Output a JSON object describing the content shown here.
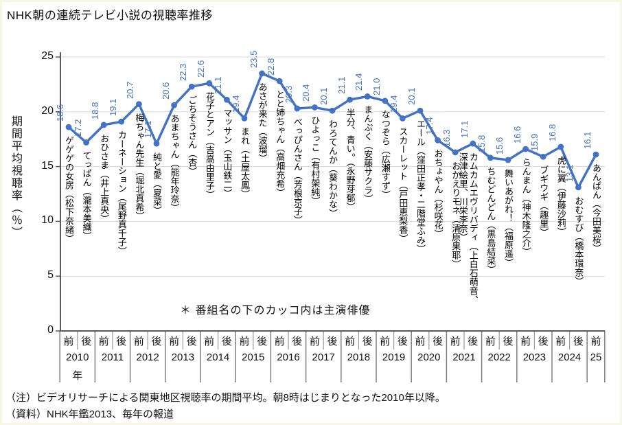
{
  "title": "NHK朝の連続テレビ小説の視聴率推移",
  "annotation": "＊ 番組名の下のカッコ内は主演俳優",
  "notes": [
    "（注）ビデオリサーチによる関東地区視聴率の期間平均。朝8時はじまりとなった2010年以降。",
    "（資料）NHK年鑑2013、毎年の報道"
  ],
  "chart_data": {
    "type": "line",
    "title": "NHK朝の連続テレビ小説の視聴率推移",
    "ylabel": "期間平均視聴率（％）",
    "ylim": [
      0,
      25
    ],
    "yticks": [
      0,
      5,
      10,
      15,
      20,
      25
    ],
    "grid": true,
    "legend": "none",
    "line_color": "#4472c4",
    "grid_color": "#d9d9d9",
    "axis_color": "#595959",
    "table_line_color": "#7f7f7f",
    "x_axis": {
      "half_labels": [
        "前",
        "後"
      ],
      "years_row": [
        "2010",
        "2011",
        "2012",
        "2013",
        "2014",
        "2015",
        "2016",
        "2017",
        "2018",
        "2019",
        "2020",
        "2021",
        "2022",
        "2023",
        "2024",
        "25"
      ],
      "year_suffix_2010": "年"
    },
    "points": [
      {
        "period": "2010前",
        "value": 18.6,
        "value_label": "18.6",
        "show": "ゲゲゲの女房（松下奈緒）"
      },
      {
        "period": "2010後",
        "value": 17.2,
        "value_label": "17.2",
        "show": "てっぱん（瀧本美織）"
      },
      {
        "period": "2011前",
        "value": 18.8,
        "value_label": "18.8",
        "show": "おひさま（井上真央）"
      },
      {
        "period": "2011後",
        "value": 19.1,
        "value_label": "19.1",
        "show": "カーネーション（尾野真千子）"
      },
      {
        "period": "2012前",
        "value": 20.7,
        "value_label": "20.7",
        "show": "梅ちゃん先生（堀北真希）"
      },
      {
        "period": "2012後",
        "value": 17.1,
        "value_label": "17.1",
        "show": "純と愛（夏菜）"
      },
      {
        "period": "2013前",
        "value": 20.6,
        "value_label": "20.6",
        "show": "あまちゃん（能年玲奈）"
      },
      {
        "period": "2013後",
        "value": 22.3,
        "value_label": "22.3",
        "show": "ごちそうさん（杏）"
      },
      {
        "period": "2014前",
        "value": 22.6,
        "value_label": "22.6",
        "show": "花子とアン（吉高由里子）"
      },
      {
        "period": "2014後",
        "value": 21.1,
        "value_label": "21.1",
        "show": "マッサン（玉山鉄二）"
      },
      {
        "period": "2015前",
        "value": 19.4,
        "value_label": "19.4",
        "show": "まれ（土屋太鳳）"
      },
      {
        "period": "2015後",
        "value": 23.5,
        "value_label": "23.5",
        "show": "あさが来た（波瑠）"
      },
      {
        "period": "2016前",
        "value": 22.8,
        "value_label": "22.8",
        "show": "とと姉ちゃん（高畑充希）"
      },
      {
        "period": "2016後",
        "value": 20.3,
        "value_label": "20.3",
        "show": "べっぴんさん（芳根京子）"
      },
      {
        "period": "2017前",
        "value": 20.4,
        "value_label": "20.4",
        "show": "ひよっこ（有村架純）"
      },
      {
        "period": "2017後",
        "value": 20.1,
        "value_label": "20.1",
        "show": "わろてんか（葵わかな）"
      },
      {
        "period": "2018前",
        "value": 21.1,
        "value_label": "21.1",
        "show": "半分、青い。（永野芽郁）"
      },
      {
        "period": "2018後",
        "value": 21.4,
        "value_label": "21.4",
        "show": "まんぷく（安藤サクラ）"
      },
      {
        "period": "2019前",
        "value": 21.0,
        "value_label": "21.0",
        "show": "なつぞら（広瀬すず）"
      },
      {
        "period": "2019後",
        "value": 19.4,
        "value_label": "19.4",
        "show": "スカーレット（戸田恵梨香）"
      },
      {
        "period": "2020前",
        "value": 20.1,
        "value_label": "20.1",
        "show": "エール（窪田正孝・二階堂ふみ）"
      },
      {
        "period": "2020後",
        "value": 17.4,
        "value_label": "17.4",
        "show": "おちょやん（杉咲花）"
      },
      {
        "period": "2021前",
        "value": 16.3,
        "value_label": "16.3",
        "show": "おかえりモネ（清原果耶）"
      },
      {
        "period": "2021後",
        "value": 17.1,
        "value_label": "17.1",
        "show": "カムカムエヴリバディ（上白石萌音、\n深津絵里、川栄李奈）"
      },
      {
        "period": "2022前",
        "value": 15.8,
        "value_label": "15.8",
        "show": "ちむどんどん（黒島結菜）"
      },
      {
        "period": "2022後",
        "value": 15.6,
        "value_label": "15.6",
        "show": "舞いあがれ！（福原遥）"
      },
      {
        "period": "2023前",
        "value": 16.6,
        "value_label": "16.6",
        "show": "らんまん（神木隆之介）"
      },
      {
        "period": "2023後",
        "value": 15.9,
        "value_label": "15.9",
        "show": "ブギウギ（趣里）"
      },
      {
        "period": "2024前",
        "value": 16.8,
        "value_label": "16.8",
        "show": "虎に翼（伊藤沙莉）"
      },
      {
        "period": "2024後",
        "value": 13.1,
        "value_label": "13.1",
        "show": "おむすび（橋本環奈）"
      },
      {
        "period": "2025前",
        "value": 16.1,
        "value_label": "16.1",
        "show": "あんぱん（今田美桜）"
      }
    ]
  }
}
